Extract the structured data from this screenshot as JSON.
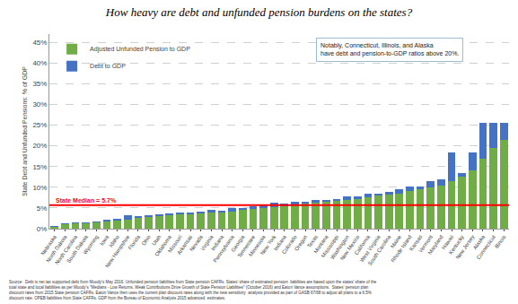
{
  "chart_data": {
    "type": "bar",
    "stacked": true,
    "title": "How heavy are debt and unfunded pension burdens on the states?",
    "ylabel": "State Debt and Unfunded Pensions: % of GDP",
    "categories": [
      "Nebraska",
      "North\nDakota",
      "North\nCarolina",
      "South\nDakota",
      "Wyoming",
      "Iowa",
      "Idaho",
      "New\nHampshire",
      "Florida",
      "Ohio",
      "Utah",
      "Oklahoma",
      "Missouri",
      "Arkansas",
      "Nevada",
      "Virginia",
      "Indiana",
      "Pennsylvania",
      "Georgia",
      "Tennessee",
      "Minnesota",
      "New York",
      "Indiana",
      "Colorado",
      "Oregon",
      "Texas",
      "Montana",
      "Mississippi",
      "Washington",
      "New Mexico",
      "California",
      "West\nVirginia",
      "South\nCarolina",
      "Maine",
      "Rhode\nIsland",
      "Kansas",
      "Vermont",
      "Maryland",
      "Hawaii",
      "Kentucky",
      "New\nJersey",
      "Alaska",
      "Connecticut",
      "Illinois"
    ],
    "series": [
      {
        "name": "Adjusted Unfunded Pension to GDP",
        "color": "#70AD47",
        "values": [
          0.5,
          1.0,
          1.2,
          1.3,
          1.5,
          1.8,
          2.0,
          2.2,
          2.5,
          2.8,
          3.0,
          3.2,
          3.4,
          3.5,
          3.6,
          3.8,
          4.0,
          4.2,
          4.5,
          4.8,
          5.0,
          5.2,
          5.5,
          5.8,
          6.0,
          6.2,
          6.5,
          6.8,
          7.0,
          7.2,
          7.5,
          8.0,
          8.2,
          8.5,
          9.0,
          9.5,
          10.0,
          10.5,
          11.5,
          12.5,
          14.0,
          17.0,
          19.5,
          21.5
        ]
      },
      {
        "name": "Debt to GDP",
        "color": "#4472C4",
        "values": [
          0.2,
          0.3,
          0.3,
          0.3,
          0.2,
          0.3,
          0.4,
          1.0,
          0.6,
          0.5,
          0.4,
          0.5,
          0.4,
          0.3,
          0.6,
          0.8,
          0.4,
          0.8,
          0.5,
          0.6,
          0.6,
          1.0,
          0.5,
          0.7,
          0.5,
          0.7,
          0.4,
          0.3,
          0.7,
          0.5,
          1.0,
          0.5,
          0.6,
          1.0,
          1.2,
          0.6,
          1.5,
          1.5,
          7.0,
          1.0,
          4.5,
          8.5,
          6.0,
          4.0
        ]
      }
    ],
    "ylim": [
      0,
      47
    ],
    "yticks": [
      {
        "value": 0,
        "label": "0%"
      },
      {
        "value": 5,
        "label": "5%"
      },
      {
        "value": 10,
        "label": "10%"
      },
      {
        "value": 15,
        "label": "15%"
      },
      {
        "value": 20,
        "label": "20%"
      },
      {
        "value": 25,
        "label": "25%"
      },
      {
        "value": 30,
        "label": "30%"
      },
      {
        "value": 35,
        "label": "35%"
      },
      {
        "value": 40,
        "label": "40%"
      },
      {
        "value": 45,
        "label": "45%"
      }
    ],
    "grid": true,
    "legend": "upper left",
    "median": {
      "value": 5.7,
      "label": "State Median = 5.7%",
      "color": "red"
    },
    "annotations": [
      "Notably, Connecticut, Illinois, and Alaska\nhave debt and pension-to-GDP ratios above 20%."
    ],
    "source": "Source:  Debt is net tax supported debt from Moody's May 2016. Unfunded pension liabilities from State pension CAFRs. States' share of estimated pension  liabilities are based upon the states' share of the\ntotal state and local liabilities as per Moody's \"Medians - Low Returns, Weak Contributions Drive Growth of State Pension Liabilities\" (October 2016) and Eaton Vance assumptions.  States' pension plan\ndiscount rates from 2015 State pension CAFRs. Eaton Vance then uses the current plan discount rates along with the new sensitivity  analysis provided as part of GASB 67/68 to adjust all plans to a 6.5%\ndiscount rate. OPEB liabilities from State CAFRs. GDP from the Bureau of Economic Analysis 2015 advanced  estimates."
  }
}
